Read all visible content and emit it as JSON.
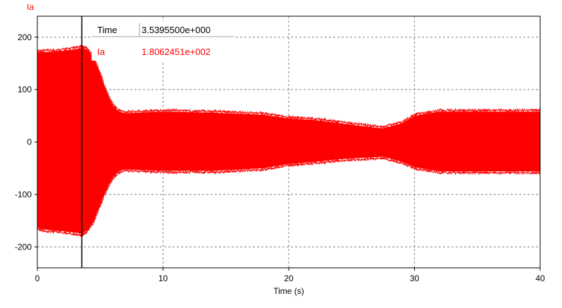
{
  "chart_data": {
    "type": "line",
    "title": "",
    "series_label": "Ia",
    "xlabel": "Time (s)",
    "ylabel": "",
    "xlim": [
      0,
      40
    ],
    "ylim": [
      -240,
      240
    ],
    "x_ticks": [
      "0",
      "10",
      "20",
      "30",
      "40"
    ],
    "y_ticks": [
      "200",
      "100",
      "0",
      "-100",
      "-200"
    ],
    "x_tick_values": [
      0,
      10,
      20,
      30,
      40
    ],
    "y_tick_values": [
      200,
      100,
      0,
      -100,
      -200
    ],
    "grid": true,
    "cursor": {
      "time_label": "Time",
      "time_value": "3.5395500e+000",
      "time_numeric": 3.53955,
      "series_label": "Ia",
      "series_value": "1.8062451e+002"
    },
    "series": [
      {
        "name": "Ia",
        "color": "#ff0000",
        "envelope": {
          "x": [
            0,
            0.2,
            1,
            2,
            3,
            3.6,
            4,
            4.5,
            5,
            5.5,
            6,
            6.5,
            7,
            10,
            14,
            18,
            20,
            22,
            24,
            26,
            27.5,
            29,
            30,
            32,
            35,
            38,
            40
          ],
          "upper": [
            172,
            172,
            172,
            174,
            177,
            180,
            176,
            160,
            130,
            95,
            70,
            58,
            55,
            58,
            56,
            52,
            45,
            42,
            36,
            30,
            26,
            36,
            50,
            58,
            58,
            58,
            58
          ],
          "lower": [
            -162,
            -166,
            -168,
            -170,
            -173,
            -175,
            -168,
            -150,
            -120,
            -90,
            -68,
            -56,
            -52,
            -55,
            -55,
            -50,
            -42,
            -38,
            -33,
            -30,
            -28,
            -38,
            -48,
            -56,
            -56,
            -56,
            -56
          ]
        }
      }
    ]
  }
}
